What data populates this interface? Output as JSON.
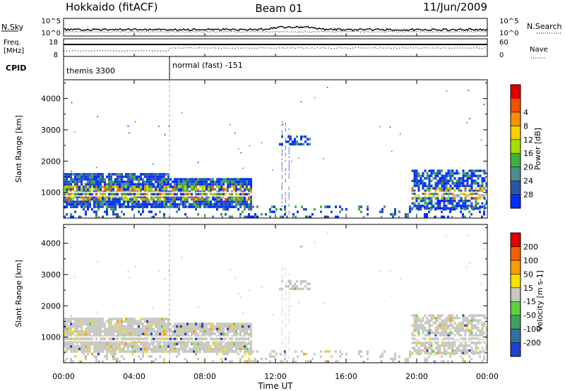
{
  "header": {
    "title": "Hokkaido (fitACF)",
    "beam": "Beam 01",
    "date": "11/Jun/2009"
  },
  "status_panels": {
    "nsky_label": "N.Sky",
    "nsky_top": "10^5",
    "nsky_bottom": "10^0",
    "nsearch_label": "N.Search",
    "nsearch_top": "10^5",
    "nsearch_bottom": "10^0",
    "freq_label_1": "Freq.",
    "freq_label_2": "[MHz]",
    "freq_top": "18",
    "freq_bottom": "8",
    "nave_label": "Nave",
    "nave_top": "60",
    "nave_bottom": "0",
    "cpid_label": "CPID",
    "cpid_1": "themis 3300",
    "cpid_2": "normal (fast) -151"
  },
  "chart_data": [
    {
      "type": "heatmap",
      "quantity": "power",
      "ylabel": "Slant Range [km]",
      "ylim": [
        180,
        4600
      ],
      "yticks": [
        "1000",
        "2000",
        "3000",
        "4000"
      ],
      "colorbar_label": "Power [dB]",
      "colorbar_ticks": [
        "4",
        "8",
        "12",
        "16",
        "20",
        "24",
        "28"
      ],
      "colorbar_colors": [
        "#0030ff",
        "#2d55a8",
        "#4a8f8f",
        "#40b040",
        "#a0e000",
        "#f8d000",
        "#f89000",
        "#f05000",
        "#e00000"
      ]
    },
    {
      "type": "heatmap",
      "quantity": "velocity",
      "ylabel": "Slant Range [km]",
      "xlabel": "Time UT",
      "ylim": [
        180,
        4600
      ],
      "yticks": [
        "1000",
        "2000",
        "3000",
        "4000"
      ],
      "xticks": [
        "00:00",
        "04:00",
        "08:00",
        "12:00",
        "16:00",
        "20:00",
        "00:00"
      ],
      "colorbar_label": "Velocity [m s-1]",
      "colorbar_ticks": [
        "200",
        "100",
        "50",
        "15",
        "-15",
        "-50",
        "-100",
        "-200"
      ],
      "colorbar_colors": [
        "#2040d0",
        "#3070a0",
        "#40a060",
        "#60d040",
        "#c8c8c0",
        "#f8e000",
        "#f8a000",
        "#f06000",
        "#e00000"
      ]
    }
  ]
}
